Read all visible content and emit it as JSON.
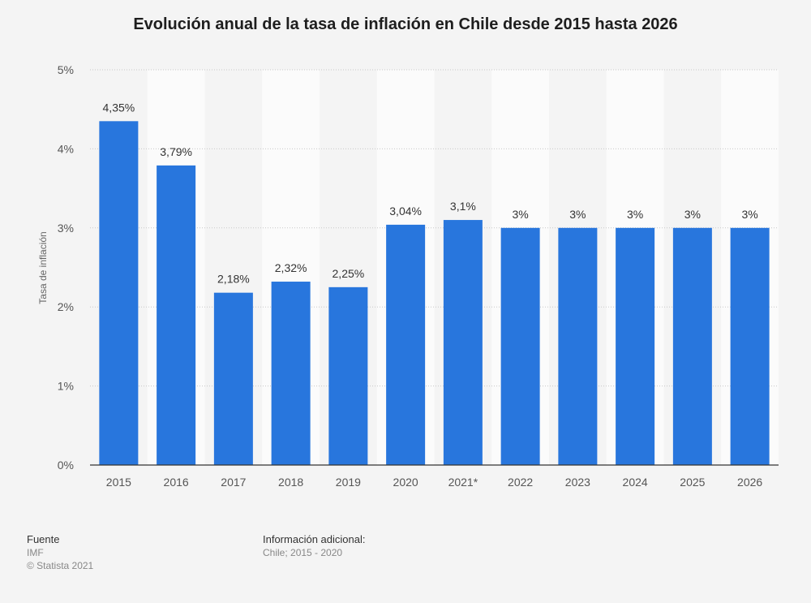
{
  "chart_data": {
    "type": "bar",
    "title": "Evolución anual de la tasa de inflación en Chile desde 2015 hasta 2026",
    "ylabel": "Tasa de inflación",
    "xlabel": "",
    "categories": [
      "2015",
      "2016",
      "2017",
      "2018",
      "2019",
      "2020",
      "2021*",
      "2022",
      "2023",
      "2024",
      "2025",
      "2026"
    ],
    "values": [
      4.35,
      3.79,
      2.18,
      2.32,
      2.25,
      3.04,
      3.1,
      3,
      3,
      3,
      3,
      3
    ],
    "value_labels": [
      "4,35%",
      "3,79%",
      "2,18%",
      "2,32%",
      "2,25%",
      "3,04%",
      "3,1%",
      "3%",
      "3%",
      "3%",
      "3%",
      "3%"
    ],
    "ylim": [
      0,
      5
    ],
    "y_ticks": [
      0,
      1,
      2,
      3,
      4,
      5
    ],
    "y_tick_labels": [
      "0%",
      "1%",
      "2%",
      "3%",
      "4%",
      "5%"
    ],
    "grid": true,
    "legend": "none",
    "bar_color": "#2876dd"
  },
  "footer": {
    "source_heading": "Fuente",
    "source_name": "IMF",
    "copyright": "© Statista 2021",
    "info_heading": "Información adicional:",
    "info_text": "Chile; 2015 - 2020"
  }
}
